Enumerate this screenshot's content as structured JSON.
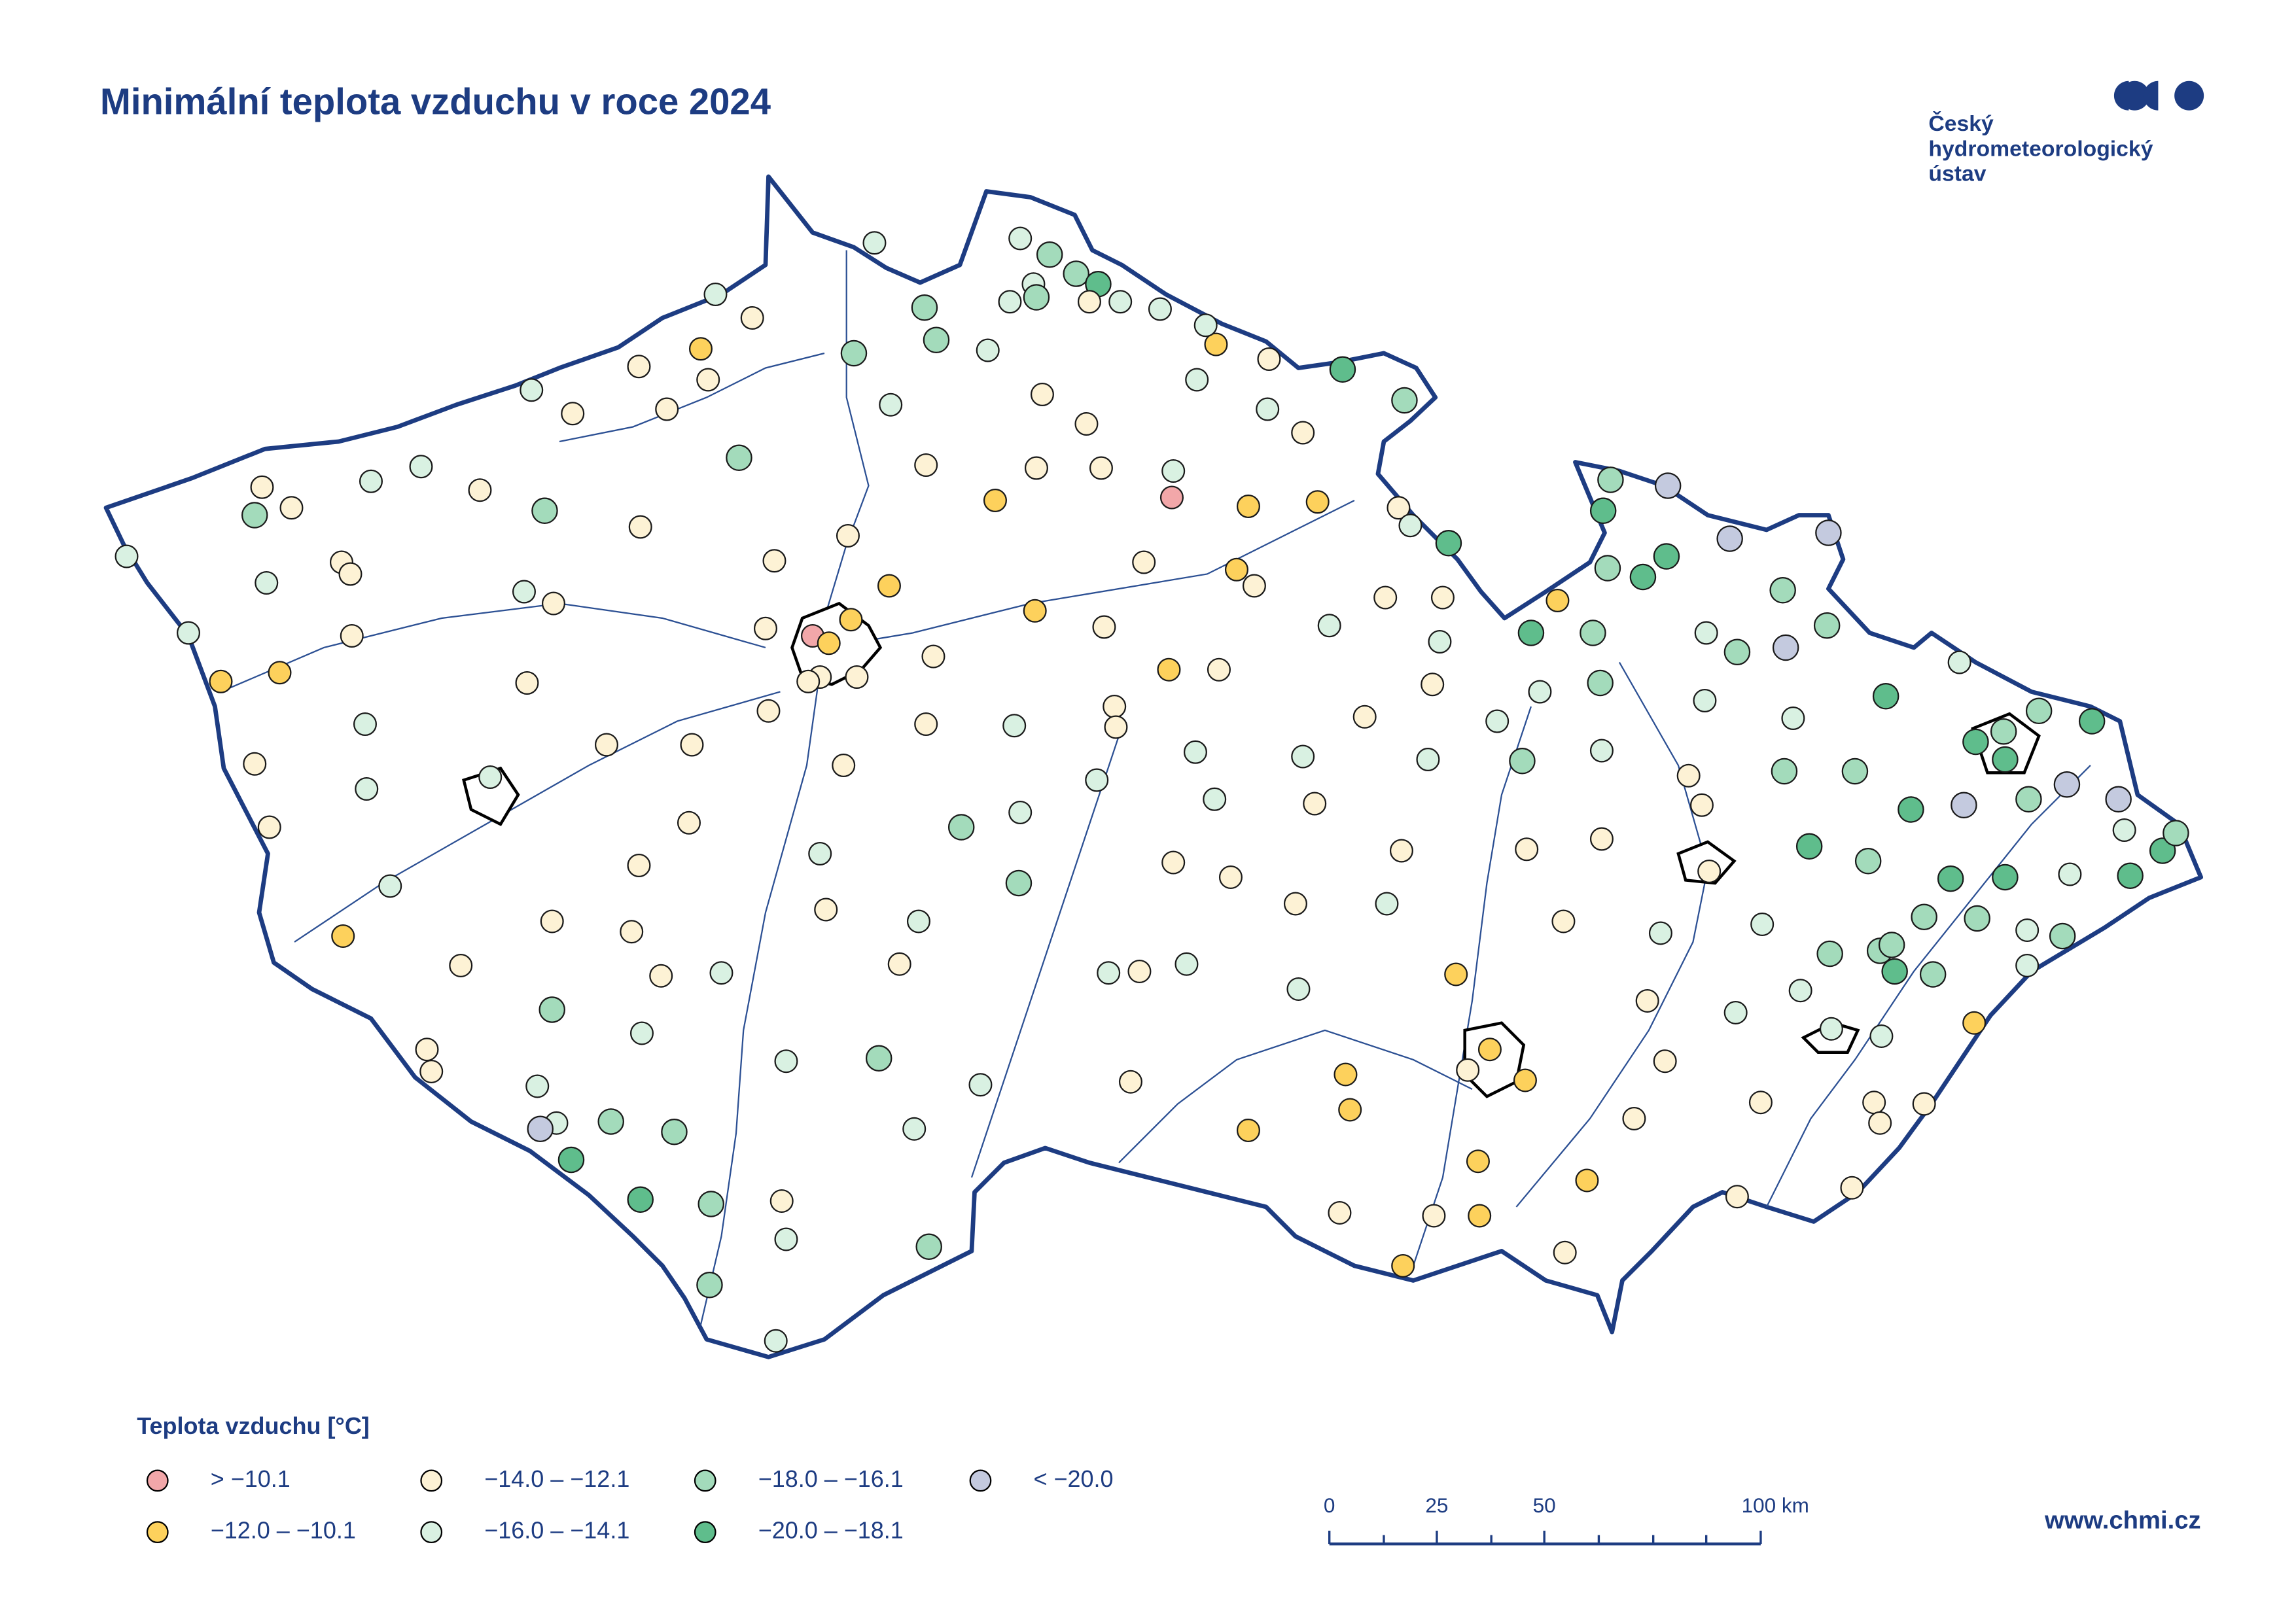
{
  "header": {
    "title": "Minimální teplota vzduchu v roce 2024"
  },
  "logo": {
    "lines": [
      "Český",
      "hydrometeorologický",
      "ústav"
    ]
  },
  "legend": {
    "title": "Teplota vzduchu [°C]",
    "items": [
      {
        "label": "> −10.1",
        "color": "#f2a7a9"
      },
      {
        "label": "−12.0 – −10.1",
        "color": "#fdd15c"
      },
      {
        "label": "−14.0 – −12.1",
        "color": "#fdf2d5"
      },
      {
        "label": "−16.0 – −14.1",
        "color": "#d9f1e2"
      },
      {
        "label": "−18.0 – −16.1",
        "color": "#a3dbbb"
      },
      {
        "label": "−20.0 – −18.1",
        "color": "#5fbd8c"
      },
      {
        "label": "< −20.0",
        "color": "#c4cadf"
      }
    ]
  },
  "scale_bar": {
    "labels": [
      "0",
      "25",
      "50",
      "100 km"
    ]
  },
  "footer": {
    "url": "www.chmi.cz"
  }
}
